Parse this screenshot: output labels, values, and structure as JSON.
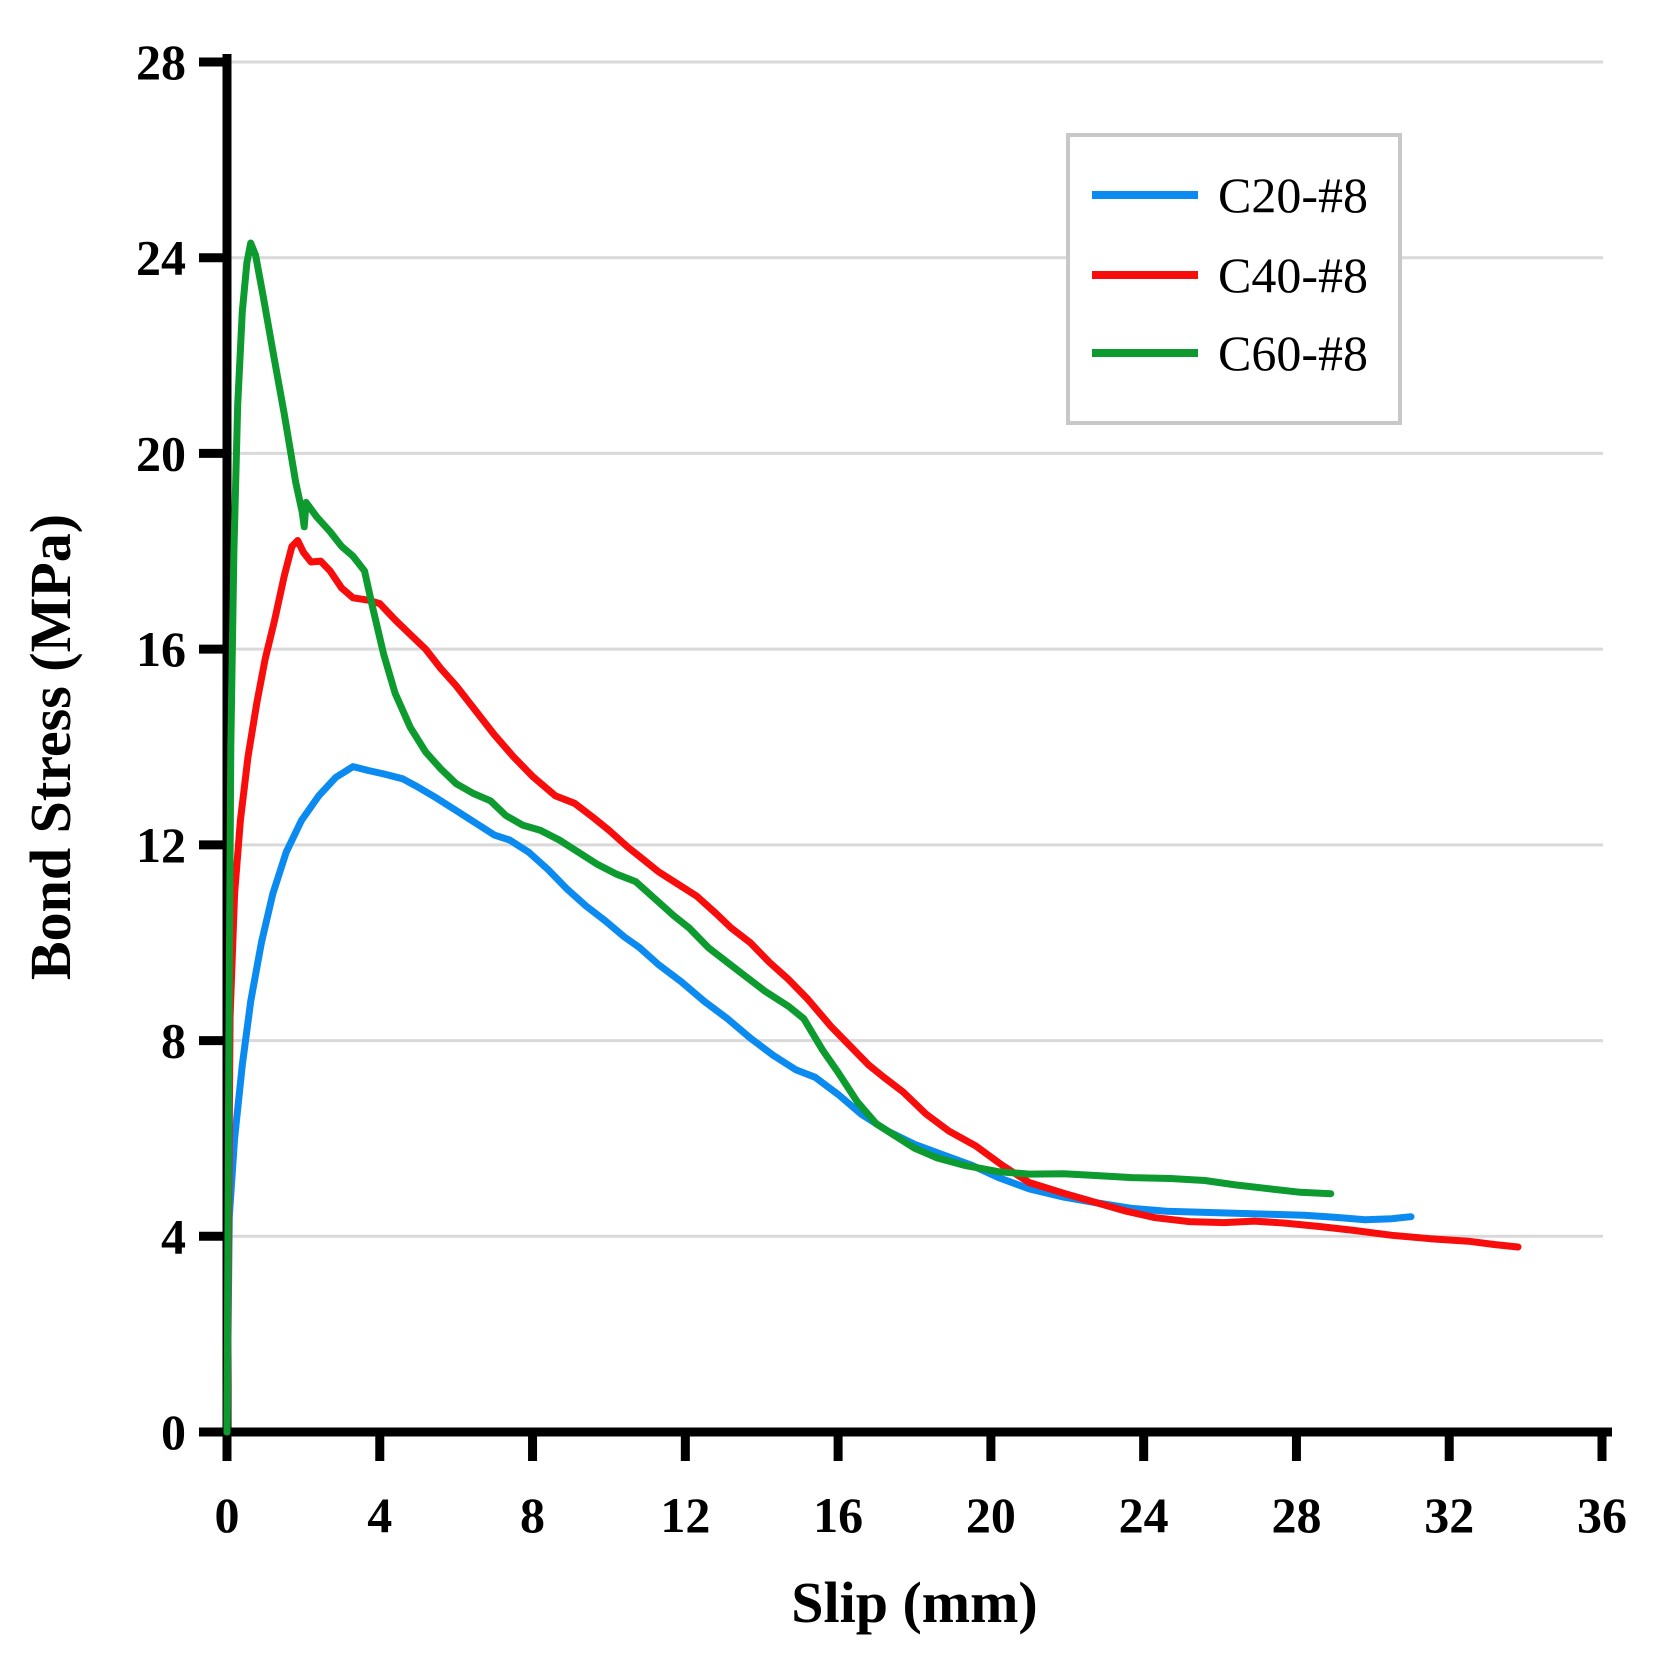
{
  "chart_data": {
    "type": "line",
    "title": "",
    "xlabel": "Slip (mm)",
    "ylabel": "Bond Stress (MPa)",
    "xlim": [
      0,
      36
    ],
    "ylim": [
      0,
      28
    ],
    "xticks": [
      0,
      4,
      8,
      12,
      16,
      20,
      24,
      28,
      32,
      36
    ],
    "yticks": [
      0,
      4,
      8,
      12,
      16,
      20,
      24,
      28
    ],
    "grid": "horizontal-only",
    "grid_color": "#d9d9d9",
    "axis_color": "#000000",
    "background_color": "#ffffff",
    "legend_position": "upper-right",
    "legend_border_color": "#c8c8c8",
    "series": [
      {
        "name": "C20-#8",
        "color": "#0b8bf0",
        "points": [
          [
            0,
            0
          ],
          [
            0.06,
            4.4
          ],
          [
            0.2,
            6.0
          ],
          [
            0.4,
            7.5
          ],
          [
            0.62,
            8.8
          ],
          [
            0.9,
            10.0
          ],
          [
            1.2,
            11.0
          ],
          [
            1.55,
            11.85
          ],
          [
            1.95,
            12.5
          ],
          [
            2.4,
            13.0
          ],
          [
            2.85,
            13.38
          ],
          [
            3.3,
            13.6
          ],
          [
            3.7,
            13.52
          ],
          [
            4.1,
            13.45
          ],
          [
            4.6,
            13.35
          ],
          [
            5.0,
            13.18
          ],
          [
            5.5,
            12.95
          ],
          [
            6.0,
            12.7
          ],
          [
            6.5,
            12.45
          ],
          [
            7.0,
            12.2
          ],
          [
            7.4,
            12.1
          ],
          [
            7.9,
            11.85
          ],
          [
            8.4,
            11.5
          ],
          [
            8.9,
            11.1
          ],
          [
            9.4,
            10.75
          ],
          [
            9.9,
            10.45
          ],
          [
            10.4,
            10.12
          ],
          [
            10.8,
            9.9
          ],
          [
            11.3,
            9.55
          ],
          [
            11.9,
            9.2
          ],
          [
            12.5,
            8.8
          ],
          [
            13.1,
            8.45
          ],
          [
            13.7,
            8.05
          ],
          [
            14.3,
            7.7
          ],
          [
            14.9,
            7.4
          ],
          [
            15.4,
            7.25
          ],
          [
            16.0,
            6.9
          ],
          [
            16.6,
            6.5
          ],
          [
            17.3,
            6.15
          ],
          [
            18.0,
            5.88
          ],
          [
            18.7,
            5.68
          ],
          [
            19.5,
            5.45
          ],
          [
            20.2,
            5.2
          ],
          [
            21.0,
            4.97
          ],
          [
            21.9,
            4.8
          ],
          [
            22.8,
            4.68
          ],
          [
            23.7,
            4.57
          ],
          [
            24.6,
            4.51
          ],
          [
            25.5,
            4.49
          ],
          [
            26.4,
            4.47
          ],
          [
            27.3,
            4.45
          ],
          [
            28.2,
            4.43
          ],
          [
            29.0,
            4.39
          ],
          [
            29.8,
            4.34
          ],
          [
            30.5,
            4.36
          ],
          [
            31.0,
            4.4
          ]
        ]
      },
      {
        "name": "C40-#8",
        "color": "#f80d0d",
        "points": [
          [
            0,
            0
          ],
          [
            0.08,
            8.5
          ],
          [
            0.2,
            11.0
          ],
          [
            0.35,
            12.5
          ],
          [
            0.55,
            13.8
          ],
          [
            0.78,
            14.9
          ],
          [
            1.0,
            15.8
          ],
          [
            1.25,
            16.6
          ],
          [
            1.5,
            17.5
          ],
          [
            1.7,
            18.1
          ],
          [
            1.85,
            18.22
          ],
          [
            2.0,
            17.98
          ],
          [
            2.2,
            17.78
          ],
          [
            2.45,
            17.8
          ],
          [
            2.7,
            17.6
          ],
          [
            3.0,
            17.25
          ],
          [
            3.3,
            17.05
          ],
          [
            3.7,
            17.0
          ],
          [
            4.0,
            16.93
          ],
          [
            4.4,
            16.6
          ],
          [
            4.8,
            16.3
          ],
          [
            5.2,
            16.0
          ],
          [
            5.6,
            15.6
          ],
          [
            6.0,
            15.25
          ],
          [
            6.5,
            14.75
          ],
          [
            7.0,
            14.25
          ],
          [
            7.5,
            13.8
          ],
          [
            8.0,
            13.4
          ],
          [
            8.6,
            13.0
          ],
          [
            9.1,
            12.85
          ],
          [
            9.6,
            12.55
          ],
          [
            10.0,
            12.3
          ],
          [
            10.5,
            11.95
          ],
          [
            10.9,
            11.7
          ],
          [
            11.3,
            11.45
          ],
          [
            11.8,
            11.2
          ],
          [
            12.3,
            10.95
          ],
          [
            12.8,
            10.6
          ],
          [
            13.2,
            10.3
          ],
          [
            13.7,
            10.0
          ],
          [
            14.2,
            9.6
          ],
          [
            14.7,
            9.25
          ],
          [
            15.2,
            8.85
          ],
          [
            15.8,
            8.3
          ],
          [
            16.3,
            7.9
          ],
          [
            16.8,
            7.5
          ],
          [
            17.2,
            7.25
          ],
          [
            17.7,
            6.95
          ],
          [
            18.3,
            6.5
          ],
          [
            18.9,
            6.15
          ],
          [
            19.6,
            5.85
          ],
          [
            20.3,
            5.45
          ],
          [
            21.0,
            5.1
          ],
          [
            21.9,
            4.88
          ],
          [
            22.7,
            4.7
          ],
          [
            23.5,
            4.52
          ],
          [
            24.3,
            4.38
          ],
          [
            25.2,
            4.3
          ],
          [
            26.1,
            4.28
          ],
          [
            26.9,
            4.31
          ],
          [
            27.7,
            4.27
          ],
          [
            28.6,
            4.2
          ],
          [
            29.5,
            4.12
          ],
          [
            30.5,
            4.02
          ],
          [
            31.5,
            3.95
          ],
          [
            32.5,
            3.9
          ],
          [
            33.2,
            3.83
          ],
          [
            33.8,
            3.78
          ]
        ]
      },
      {
        "name": "C60-#8",
        "color": "#0d9b2f",
        "points": [
          [
            0,
            0
          ],
          [
            0.05,
            8.0
          ],
          [
            0.1,
            14.0
          ],
          [
            0.18,
            18.0
          ],
          [
            0.28,
            21.0
          ],
          [
            0.4,
            22.9
          ],
          [
            0.52,
            23.9
          ],
          [
            0.62,
            24.3
          ],
          [
            0.75,
            24.05
          ],
          [
            0.95,
            23.2
          ],
          [
            1.2,
            22.1
          ],
          [
            1.5,
            20.8
          ],
          [
            1.8,
            19.4
          ],
          [
            1.97,
            18.8
          ],
          [
            2.02,
            18.5
          ],
          [
            2.07,
            19.0
          ],
          [
            2.35,
            18.7
          ],
          [
            2.7,
            18.4
          ],
          [
            3.0,
            18.1
          ],
          [
            3.3,
            17.9
          ],
          [
            3.6,
            17.6
          ],
          [
            3.8,
            16.9
          ],
          [
            4.1,
            15.9
          ],
          [
            4.4,
            15.1
          ],
          [
            4.8,
            14.4
          ],
          [
            5.2,
            13.9
          ],
          [
            5.6,
            13.55
          ],
          [
            6.0,
            13.25
          ],
          [
            6.45,
            13.05
          ],
          [
            6.9,
            12.9
          ],
          [
            7.3,
            12.6
          ],
          [
            7.75,
            12.4
          ],
          [
            8.2,
            12.3
          ],
          [
            8.7,
            12.1
          ],
          [
            9.2,
            11.85
          ],
          [
            9.7,
            11.6
          ],
          [
            10.2,
            11.4
          ],
          [
            10.7,
            11.25
          ],
          [
            11.2,
            10.9
          ],
          [
            11.7,
            10.55
          ],
          [
            12.1,
            10.3
          ],
          [
            12.6,
            9.9
          ],
          [
            13.1,
            9.6
          ],
          [
            13.6,
            9.3
          ],
          [
            14.1,
            9.0
          ],
          [
            14.7,
            8.7
          ],
          [
            15.1,
            8.45
          ],
          [
            15.6,
            7.8
          ],
          [
            16.0,
            7.35
          ],
          [
            16.5,
            6.75
          ],
          [
            17.0,
            6.3
          ],
          [
            17.5,
            6.05
          ],
          [
            18.0,
            5.8
          ],
          [
            18.6,
            5.6
          ],
          [
            19.3,
            5.45
          ],
          [
            20.2,
            5.32
          ],
          [
            21.0,
            5.27
          ],
          [
            21.9,
            5.28
          ],
          [
            22.8,
            5.24
          ],
          [
            23.7,
            5.2
          ],
          [
            24.7,
            5.18
          ],
          [
            25.6,
            5.14
          ],
          [
            26.4,
            5.05
          ],
          [
            27.3,
            4.97
          ],
          [
            28.1,
            4.9
          ],
          [
            28.9,
            4.87
          ]
        ]
      }
    ]
  }
}
